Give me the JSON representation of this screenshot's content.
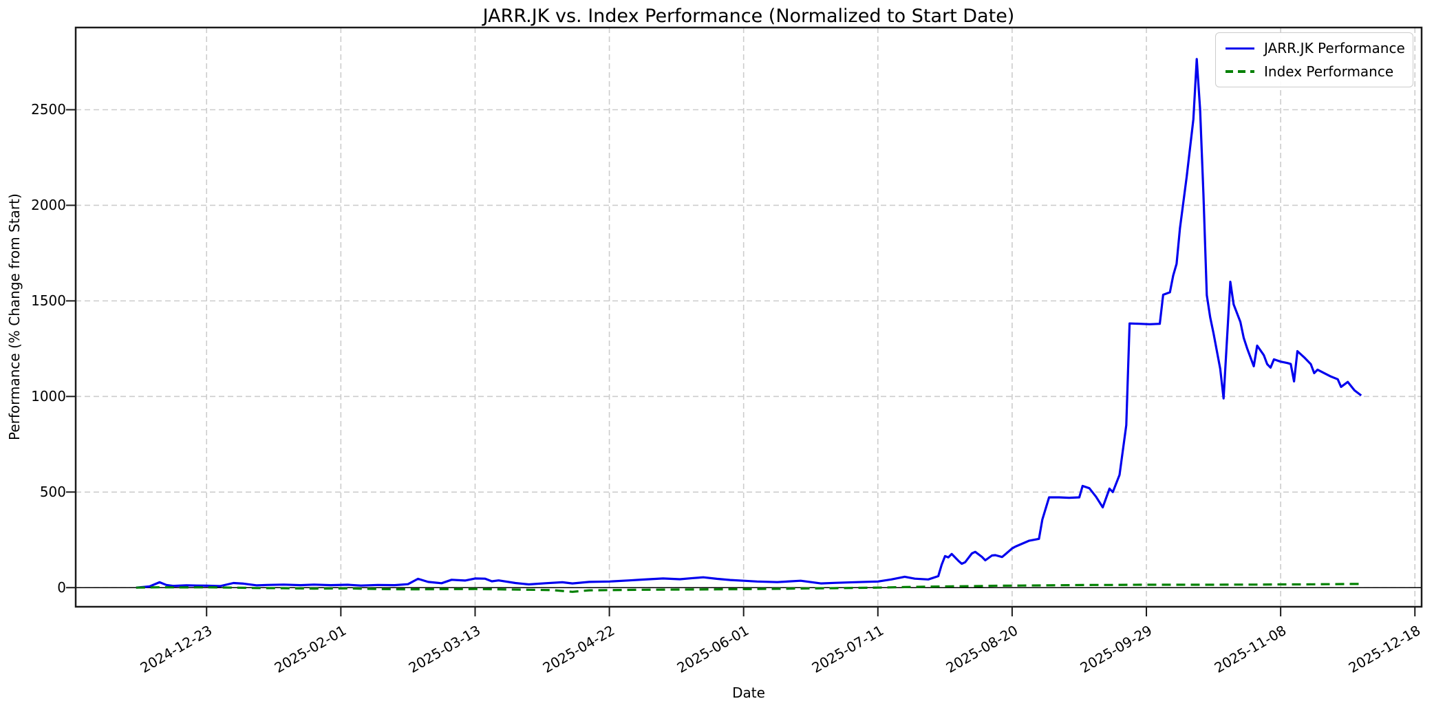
{
  "chart_data": {
    "type": "line",
    "title": "JARR.JK vs. Index Performance (Normalized to Start Date)",
    "xlabel": "Date",
    "ylabel": "Performance (% Change from Start)",
    "grid": true,
    "legend_position": "upper right",
    "zero_line": true,
    "x_domain": [
      "2024-11-14",
      "2025-12-20"
    ],
    "y_domain": [
      -100,
      2930
    ],
    "x_ticks": [
      "2024-12-23",
      "2025-02-01",
      "2025-03-13",
      "2025-04-22",
      "2025-06-01",
      "2025-07-11",
      "2025-08-20",
      "2025-09-29",
      "2025-11-08",
      "2025-12-18"
    ],
    "y_ticks": [
      0,
      500,
      1000,
      1500,
      2000,
      2500
    ],
    "colors": {
      "jarr_line": "#0000ee",
      "index_line": "#008000",
      "grid": "#cccccc",
      "spine": "#1a1a1a",
      "zero_line": "#000000"
    },
    "series": [
      {
        "name": "JARR.JK Performance",
        "color": "#0000ee",
        "style": "solid",
        "points": [
          [
            "2024-12-02",
            0
          ],
          [
            "2024-12-04",
            3
          ],
          [
            "2024-12-06",
            6
          ],
          [
            "2024-12-09",
            28
          ],
          [
            "2024-12-11",
            14
          ],
          [
            "2024-12-13",
            9
          ],
          [
            "2024-12-17",
            12
          ],
          [
            "2024-12-20",
            11
          ],
          [
            "2024-12-23",
            10
          ],
          [
            "2024-12-27",
            8
          ],
          [
            "2024-12-31",
            24
          ],
          [
            "2025-01-03",
            21
          ],
          [
            "2025-01-07",
            12
          ],
          [
            "2025-01-10",
            14
          ],
          [
            "2025-01-15",
            16
          ],
          [
            "2025-01-20",
            13
          ],
          [
            "2025-01-24",
            16
          ],
          [
            "2025-01-29",
            13
          ],
          [
            "2025-02-03",
            15
          ],
          [
            "2025-02-07",
            11
          ],
          [
            "2025-02-12",
            14
          ],
          [
            "2025-02-17",
            13
          ],
          [
            "2025-02-21",
            18
          ],
          [
            "2025-02-24",
            46
          ],
          [
            "2025-02-27",
            30
          ],
          [
            "2025-03-03",
            23
          ],
          [
            "2025-03-06",
            41
          ],
          [
            "2025-03-10",
            37
          ],
          [
            "2025-03-13",
            48
          ],
          [
            "2025-03-16",
            47
          ],
          [
            "2025-03-18",
            33
          ],
          [
            "2025-03-20",
            38
          ],
          [
            "2025-03-25",
            24
          ],
          [
            "2025-03-29",
            17
          ],
          [
            "2025-04-03",
            23
          ],
          [
            "2025-04-08",
            28
          ],
          [
            "2025-04-11",
            22
          ],
          [
            "2025-04-16",
            30
          ],
          [
            "2025-04-22",
            32
          ],
          [
            "2025-04-28",
            38
          ],
          [
            "2025-05-02",
            42
          ],
          [
            "2025-05-08",
            48
          ],
          [
            "2025-05-13",
            44
          ],
          [
            "2025-05-17",
            50
          ],
          [
            "2025-05-20",
            54
          ],
          [
            "2025-05-24",
            46
          ],
          [
            "2025-05-28",
            40
          ],
          [
            "2025-06-01",
            36
          ],
          [
            "2025-06-05",
            32
          ],
          [
            "2025-06-11",
            29
          ],
          [
            "2025-06-18",
            36
          ],
          [
            "2025-06-24",
            22
          ],
          [
            "2025-06-28",
            25
          ],
          [
            "2025-07-05",
            29
          ],
          [
            "2025-07-11",
            32
          ],
          [
            "2025-07-15",
            43
          ],
          [
            "2025-07-19",
            57
          ],
          [
            "2025-07-22",
            47
          ],
          [
            "2025-07-26",
            43
          ],
          [
            "2025-07-29",
            60
          ],
          [
            "2025-07-30",
            120
          ],
          [
            "2025-07-31",
            165
          ],
          [
            "2025-08-01",
            158
          ],
          [
            "2025-08-02",
            176
          ],
          [
            "2025-08-04",
            140
          ],
          [
            "2025-08-05",
            125
          ],
          [
            "2025-08-06",
            133
          ],
          [
            "2025-08-08",
            179
          ],
          [
            "2025-08-09",
            187
          ],
          [
            "2025-08-11",
            161
          ],
          [
            "2025-08-12",
            143
          ],
          [
            "2025-08-14",
            168
          ],
          [
            "2025-08-15",
            170
          ],
          [
            "2025-08-17",
            160
          ],
          [
            "2025-08-18",
            175
          ],
          [
            "2025-08-20",
            205
          ],
          [
            "2025-08-21",
            215
          ],
          [
            "2025-08-25",
            245
          ],
          [
            "2025-08-28",
            255
          ],
          [
            "2025-08-29",
            356
          ],
          [
            "2025-08-31",
            472
          ],
          [
            "2025-09-03",
            472
          ],
          [
            "2025-09-06",
            470
          ],
          [
            "2025-09-09",
            472
          ],
          [
            "2025-09-10",
            532
          ],
          [
            "2025-09-12",
            520
          ],
          [
            "2025-09-14",
            475
          ],
          [
            "2025-09-16",
            420
          ],
          [
            "2025-09-18",
            518
          ],
          [
            "2025-09-19",
            500
          ],
          [
            "2025-09-21",
            590
          ],
          [
            "2025-09-23",
            850
          ],
          [
            "2025-09-24",
            1382
          ],
          [
            "2025-09-27",
            1380
          ],
          [
            "2025-09-30",
            1378
          ],
          [
            "2025-10-03",
            1380
          ],
          [
            "2025-10-04",
            1532
          ],
          [
            "2025-10-06",
            1545
          ],
          [
            "2025-10-07",
            1633
          ],
          [
            "2025-10-08",
            1694
          ],
          [
            "2025-10-09",
            1880
          ],
          [
            "2025-10-11",
            2150
          ],
          [
            "2025-10-13",
            2450
          ],
          [
            "2025-10-14",
            2765
          ],
          [
            "2025-10-15",
            2500
          ],
          [
            "2025-10-16",
            2060
          ],
          [
            "2025-10-17",
            1530
          ],
          [
            "2025-10-18",
            1415
          ],
          [
            "2025-10-19",
            1330
          ],
          [
            "2025-10-21",
            1145
          ],
          [
            "2025-10-22",
            990
          ],
          [
            "2025-10-24",
            1600
          ],
          [
            "2025-10-25",
            1482
          ],
          [
            "2025-10-27",
            1390
          ],
          [
            "2025-10-28",
            1306
          ],
          [
            "2025-10-29",
            1252
          ],
          [
            "2025-10-31",
            1158
          ],
          [
            "2025-11-01",
            1266
          ],
          [
            "2025-11-03",
            1216
          ],
          [
            "2025-11-04",
            1169
          ],
          [
            "2025-11-05",
            1151
          ],
          [
            "2025-11-06",
            1194
          ],
          [
            "2025-11-08",
            1182
          ],
          [
            "2025-11-10",
            1175
          ],
          [
            "2025-11-11",
            1170
          ],
          [
            "2025-11-12",
            1079
          ],
          [
            "2025-11-13",
            1237
          ],
          [
            "2025-11-15",
            1205
          ],
          [
            "2025-11-17",
            1169
          ],
          [
            "2025-11-18",
            1122
          ],
          [
            "2025-11-19",
            1140
          ],
          [
            "2025-11-21",
            1122
          ],
          [
            "2025-11-23",
            1104
          ],
          [
            "2025-11-25",
            1090
          ],
          [
            "2025-11-26",
            1050
          ],
          [
            "2025-11-28",
            1076
          ],
          [
            "2025-11-30",
            1032
          ],
          [
            "2025-12-02",
            1005
          ]
        ]
      },
      {
        "name": "Index Performance",
        "color": "#008000",
        "style": "dashed",
        "points": [
          [
            "2024-12-02",
            0
          ],
          [
            "2024-12-09",
            2
          ],
          [
            "2024-12-16",
            1
          ],
          [
            "2024-12-23",
            2
          ],
          [
            "2024-12-31",
            0
          ],
          [
            "2025-01-07",
            -2
          ],
          [
            "2025-01-15",
            -3
          ],
          [
            "2025-01-24",
            -5
          ],
          [
            "2025-02-03",
            -4
          ],
          [
            "2025-02-12",
            -7
          ],
          [
            "2025-02-21",
            -9
          ],
          [
            "2025-03-03",
            -8
          ],
          [
            "2025-03-13",
            -7
          ],
          [
            "2025-03-20",
            -9
          ],
          [
            "2025-03-29",
            -11
          ],
          [
            "2025-04-05",
            -13
          ],
          [
            "2025-04-11",
            -22
          ],
          [
            "2025-04-16",
            -14
          ],
          [
            "2025-04-22",
            -13
          ],
          [
            "2025-05-02",
            -11
          ],
          [
            "2025-05-13",
            -10
          ],
          [
            "2025-05-24",
            -9
          ],
          [
            "2025-06-01",
            -8
          ],
          [
            "2025-06-11",
            -6
          ],
          [
            "2025-06-21",
            -4
          ],
          [
            "2025-06-28",
            -3
          ],
          [
            "2025-07-05",
            -1
          ],
          [
            "2025-07-11",
            0
          ],
          [
            "2025-07-19",
            3
          ],
          [
            "2025-07-26",
            5
          ],
          [
            "2025-08-02",
            7
          ],
          [
            "2025-08-09",
            8
          ],
          [
            "2025-08-16",
            10
          ],
          [
            "2025-08-23",
            11
          ],
          [
            "2025-08-30",
            12
          ],
          [
            "2025-09-06",
            13
          ],
          [
            "2025-09-13",
            14
          ],
          [
            "2025-09-20",
            14
          ],
          [
            "2025-09-27",
            15
          ],
          [
            "2025-10-04",
            15
          ],
          [
            "2025-10-11",
            15
          ],
          [
            "2025-10-18",
            15
          ],
          [
            "2025-10-25",
            16
          ],
          [
            "2025-11-01",
            16
          ],
          [
            "2025-11-08",
            17
          ],
          [
            "2025-11-15",
            17
          ],
          [
            "2025-11-22",
            18
          ],
          [
            "2025-11-29",
            19
          ],
          [
            "2025-12-02",
            19
          ]
        ]
      }
    ]
  }
}
